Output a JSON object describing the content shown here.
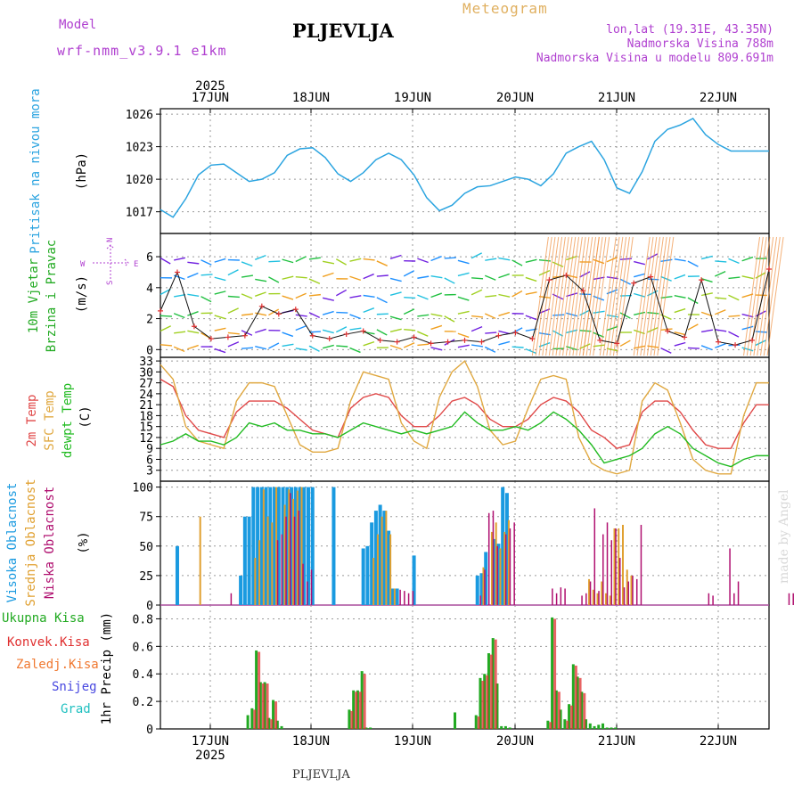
{
  "header": {
    "model_label": "Model",
    "model_name": "wrf-nmm_v3.9.1 e1km",
    "station": "PLJEVLJA",
    "meteogram": "Meteogram",
    "lonlat": "lon,lat (19.31E, 43.35N)",
    "elevation": "Nadmorska Visina 788m",
    "model_elevation": "Nadmorska Visina u modelu 809.691m",
    "credit": "made by Angel",
    "footer_station": "PLJEVLJA"
  },
  "axis": {
    "year": "2025",
    "start_time": "16JUN 12UTC",
    "end_time": "22JUN 12UTC",
    "days": [
      "17JUN",
      "18JUN",
      "19JUN",
      "20JUN",
      "21JUN",
      "22JUN"
    ]
  },
  "colors": {
    "pressure": "#2ba4e0",
    "temp2m": "#e04848",
    "sfc_temp": "#e0a840",
    "dewpt": "#22bb22",
    "high_cloud": "#1a9ae0",
    "mid_cloud": "#e0a030",
    "low_cloud": "#b01070",
    "total_precip": "#22aa22",
    "conv_precip": "#e03030",
    "frozen_precip": "#f07830",
    "snow": "#4848e0",
    "hail": "#20c0c0",
    "wind_label": "#b040d0"
  },
  "panels": {
    "pressure": {
      "ylabel1": "Pritisak na nivou mora",
      "ylabel2": "(hPa)"
    },
    "wind": {
      "ylabel1": "10m Vjetar",
      "ylabel1b": "Brzina i Pravac",
      "ylabel2": "(m/s)",
      "dir_n": "N",
      "dir_s": "S",
      "dir_w": "W",
      "dir_e": "E"
    },
    "temp": {
      "ylabel_t": "2m Temp",
      "ylabel_sfc": "SFC Temp",
      "ylabel_dew": "dewpt Temp",
      "ylabel2": "(C)"
    },
    "cloud": {
      "ylabel_high": "Visoka Oblacnost",
      "ylabel_mid": "Srednja Oblacnost",
      "ylabel_low": "Niska Oblacnost",
      "ylabel2": "(%)"
    },
    "precip": {
      "legend": [
        "Ukupna Kisa",
        "Konvek.Kisa",
        "Zaledj.Kisa",
        "Snijeg",
        "Grad"
      ],
      "ylabel": "1hr Precip (mm)"
    }
  },
  "chart_data": [
    {
      "type": "line",
      "title": "Pritisak na nivou mora",
      "ylabel": "(hPa)",
      "ylim": [
        1015,
        1026.5
      ],
      "yticks": [
        1017,
        1020,
        1023,
        1026
      ],
      "x_hours": [
        0,
        3,
        6,
        9,
        12,
        15,
        18,
        21,
        24,
        27,
        30,
        33,
        36,
        39,
        42,
        45,
        48,
        51,
        54,
        57,
        60,
        63,
        66,
        69,
        72,
        75,
        78,
        81,
        84,
        87,
        90,
        93,
        96,
        99,
        102,
        105,
        108,
        111,
        114,
        117,
        120,
        123,
        126,
        129,
        132,
        135,
        138,
        141,
        144
      ],
      "series": [
        {
          "name": "Pritisak na nivou mora",
          "values": [
            1017.2,
            1016.5,
            1018.2,
            1020.4,
            1021.3,
            1021.4,
            1020.6,
            1019.8,
            1020.0,
            1020.6,
            1022.2,
            1022.8,
            1022.9,
            1022.0,
            1020.5,
            1019.8,
            1020.6,
            1021.8,
            1022.4,
            1021.8,
            1020.4,
            1018.3,
            1017.1,
            1017.6,
            1018.7,
            1019.3,
            1019.4,
            1019.8,
            1020.2,
            1020.0,
            1019.4,
            1020.5,
            1022.4,
            1023.0,
            1023.5,
            1021.8,
            1019.2,
            1018.7,
            1020.7,
            1023.5,
            1024.6,
            1025.0,
            1025.6,
            1024.1,
            1023.2,
            1022.6,
            1022.6,
            1022.6,
            1022.6
          ]
        }
      ]
    },
    {
      "type": "line",
      "title": "10m Vjetar Brzina i Pravac",
      "ylabel": "(m/s)",
      "ylim": [
        -0.5,
        7.5
      ],
      "yticks": [
        0,
        2,
        4,
        6
      ],
      "x_hours": [
        0,
        4,
        8,
        12,
        16,
        20,
        24,
        28,
        32,
        36,
        40,
        44,
        48,
        52,
        56,
        60,
        64,
        68,
        72,
        76,
        80,
        84,
        88,
        92,
        96,
        100,
        104,
        108,
        112,
        116,
        120,
        124,
        128,
        132,
        136,
        140,
        144
      ],
      "series": [
        {
          "name": "10m Vjetar",
          "values": [
            2.5,
            5.0,
            1.5,
            0.7,
            0.8,
            0.9,
            2.8,
            2.3,
            2.6,
            0.9,
            0.7,
            1.0,
            1.2,
            0.6,
            0.5,
            0.8,
            0.4,
            0.5,
            0.6,
            0.5,
            0.9,
            1.1,
            0.7,
            4.5,
            4.8,
            3.8,
            0.6,
            0.4,
            4.3,
            4.7,
            1.2,
            0.8,
            4.5,
            0.5,
            0.3,
            0.6,
            5.2
          ]
        }
      ]
    },
    {
      "type": "line",
      "title": "2m Temp / SFC Temp / dewpt Temp",
      "ylabel": "(C)",
      "ylim": [
        0,
        34
      ],
      "yticks": [
        3,
        6,
        9,
        12,
        15,
        18,
        21,
        24,
        27,
        30,
        33
      ],
      "x_hours": [
        0,
        3,
        6,
        9,
        12,
        15,
        18,
        21,
        24,
        27,
        30,
        33,
        36,
        39,
        42,
        45,
        48,
        51,
        54,
        57,
        60,
        63,
        66,
        69,
        72,
        75,
        78,
        81,
        84,
        87,
        90,
        93,
        96,
        99,
        102,
        105,
        108,
        111,
        114,
        117,
        120,
        123,
        126,
        129,
        132,
        135,
        138,
        141,
        144
      ],
      "series": [
        {
          "name": "2m Temp",
          "values": [
            28,
            26,
            18,
            14,
            13,
            12,
            19,
            22,
            22,
            22,
            20,
            17,
            14,
            13,
            12,
            20,
            23,
            24,
            23,
            18,
            15,
            15,
            18,
            22,
            23,
            21,
            17,
            15,
            15,
            17,
            21,
            23,
            22,
            19,
            14,
            12,
            9,
            10,
            19,
            22,
            22,
            19,
            14,
            10,
            9,
            9,
            16,
            21,
            21
          ]
        },
        {
          "name": "SFC Temp",
          "values": [
            32,
            28,
            15,
            11,
            10,
            9,
            22,
            27,
            27,
            26,
            18,
            10,
            8,
            8,
            9,
            22,
            30,
            29,
            28,
            16,
            11,
            9,
            23,
            30,
            33,
            26,
            14,
            10,
            11,
            20,
            28,
            29,
            28,
            12,
            5,
            3,
            2,
            3,
            22,
            27,
            25,
            16,
            6,
            3,
            2,
            2,
            18,
            27,
            27
          ]
        },
        {
          "name": "dewpt Temp",
          "values": [
            10,
            11,
            13,
            11,
            11,
            10,
            12,
            16,
            15,
            16,
            14,
            14,
            13,
            13,
            12,
            14,
            16,
            15,
            14,
            13,
            14,
            13,
            14,
            15,
            19,
            16,
            14,
            14,
            15,
            14,
            16,
            19,
            17,
            14,
            10,
            5,
            6,
            7,
            9,
            13,
            15,
            13,
            9,
            7,
            5,
            4,
            6,
            7,
            7
          ]
        }
      ]
    },
    {
      "type": "bar",
      "title": "Visoka / Srednja / Niska Oblacnost",
      "ylabel": "(%)",
      "ylim": [
        0,
        105
      ],
      "yticks": [
        0,
        25,
        50,
        75,
        100
      ],
      "series": [
        {
          "name": "Visoka Oblacnost",
          "hours": [
            4,
            19,
            20,
            21,
            22,
            23,
            24,
            25,
            26,
            27,
            28,
            29,
            30,
            31,
            32,
            33,
            34,
            35,
            36,
            41,
            48,
            49,
            50,
            51,
            52,
            53,
            54,
            55,
            56,
            60,
            75,
            76,
            77,
            79,
            80,
            81,
            82
          ],
          "values": [
            50,
            25,
            75,
            75,
            100,
            100,
            100,
            100,
            100,
            100,
            100,
            100,
            100,
            100,
            100,
            100,
            100,
            100,
            100,
            100,
            48,
            50,
            70,
            80,
            85,
            80,
            63,
            14,
            14,
            42,
            25,
            27,
            45,
            56,
            52,
            100,
            95
          ]
        },
        {
          "name": "Srednja Oblacnost",
          "hours": [
            9,
            22,
            23,
            24,
            25,
            26,
            27,
            29,
            30,
            31,
            32,
            33,
            50,
            51,
            52,
            53,
            54,
            55,
            76,
            78,
            79,
            80,
            81,
            82,
            101,
            102,
            103,
            104,
            105,
            106,
            107,
            108,
            109,
            110,
            111
          ],
          "values": [
            75,
            40,
            55,
            98,
            75,
            70,
            100,
            85,
            98,
            90,
            97,
            100,
            40,
            60,
            75,
            80,
            60,
            14,
            32,
            62,
            70,
            48,
            62,
            72,
            22,
            13,
            10,
            20,
            10,
            8,
            65,
            65,
            68,
            30,
            25
          ]
        },
        {
          "name": "Niska Oblacnost",
          "hours": [
            16,
            27,
            28,
            29,
            30,
            31,
            32,
            33,
            34,
            35,
            56,
            57,
            58,
            59,
            75,
            76,
            77,
            78,
            79,
            81,
            82,
            83,
            92,
            93,
            94,
            95,
            99,
            100,
            101,
            102,
            103,
            104,
            105,
            106,
            107,
            108,
            109,
            110,
            111,
            112,
            113,
            129,
            130,
            134,
            135,
            136,
            148,
            149
          ],
          "values": [
            10,
            55,
            60,
            75,
            95,
            75,
            80,
            35,
            20,
            30,
            13,
            12,
            10,
            12,
            8,
            30,
            78,
            80,
            50,
            60,
            65,
            70,
            14,
            10,
            15,
            14,
            8,
            10,
            20,
            82,
            12,
            60,
            70,
            55,
            65,
            40,
            15,
            20,
            25,
            22,
            68,
            10,
            8,
            48,
            10,
            20,
            10,
            10
          ]
        }
      ]
    },
    {
      "type": "bar",
      "title": "1hr Precip",
      "ylabel": "1hr Precip (mm)",
      "ylim": [
        0,
        0.9
      ],
      "yticks": [
        0,
        0.2,
        0.4,
        0.6,
        0.8
      ],
      "series": [
        {
          "name": "Ukupna Kisa",
          "hours": [
            21,
            22,
            23,
            24,
            25,
            26,
            27,
            28,
            29,
            45,
            46,
            47,
            48,
            49,
            50,
            70,
            75,
            76,
            77,
            78,
            79,
            80,
            81,
            82,
            83,
            92,
            93,
            94,
            95,
            96,
            97,
            98,
            99,
            100,
            101,
            102,
            103,
            104,
            105,
            106,
            107,
            108
          ],
          "values": [
            0.1,
            0.15,
            0.57,
            0.34,
            0.34,
            0.08,
            0.21,
            0.06,
            0.02,
            0.14,
            0.28,
            0.28,
            0.42,
            0.01,
            0.01,
            0.12,
            0.1,
            0.37,
            0.4,
            0.55,
            0.66,
            0.33,
            0.02,
            0.02,
            0.01,
            0.06,
            0.81,
            0.28,
            0.14,
            0.07,
            0.18,
            0.47,
            0.38,
            0.27,
            0.07,
            0.04,
            0.02,
            0.03,
            0.04,
            0.01,
            0.01,
            0.01
          ]
        },
        {
          "name": "Konvek.Kisa",
          "hours": [
            22,
            23,
            24,
            25,
            26,
            27,
            45,
            46,
            47,
            48,
            75,
            76,
            77,
            78,
            79,
            92,
            93,
            94,
            96,
            97,
            98,
            99,
            100
          ],
          "values": [
            0.14,
            0.56,
            0.33,
            0.33,
            0.07,
            0.2,
            0.13,
            0.27,
            0.27,
            0.4,
            0.09,
            0.35,
            0.39,
            0.54,
            0.65,
            0.05,
            0.8,
            0.27,
            0.06,
            0.17,
            0.46,
            0.37,
            0.26
          ]
        }
      ]
    }
  ]
}
